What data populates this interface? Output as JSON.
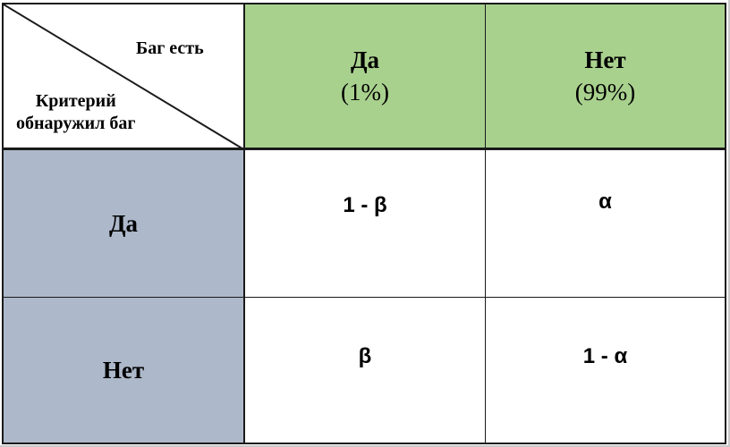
{
  "colors": {
    "header_green": "#a9d18e",
    "row_header_blue": "#adb9ca",
    "border": "#1a1a1a"
  },
  "table": {
    "corner": {
      "top_label": "Баг есть",
      "bottom_label_line1": "Критерий",
      "bottom_label_line2": "обнаружил баг"
    },
    "columns": [
      {
        "label": "Да",
        "percent": "(1%)"
      },
      {
        "label": "Нет",
        "percent": "(99%)"
      }
    ],
    "rows": [
      {
        "label": "Да",
        "cells": [
          "1 - β",
          "α"
        ]
      },
      {
        "label": "Нет",
        "cells": [
          "β",
          "1 - α"
        ]
      }
    ]
  }
}
